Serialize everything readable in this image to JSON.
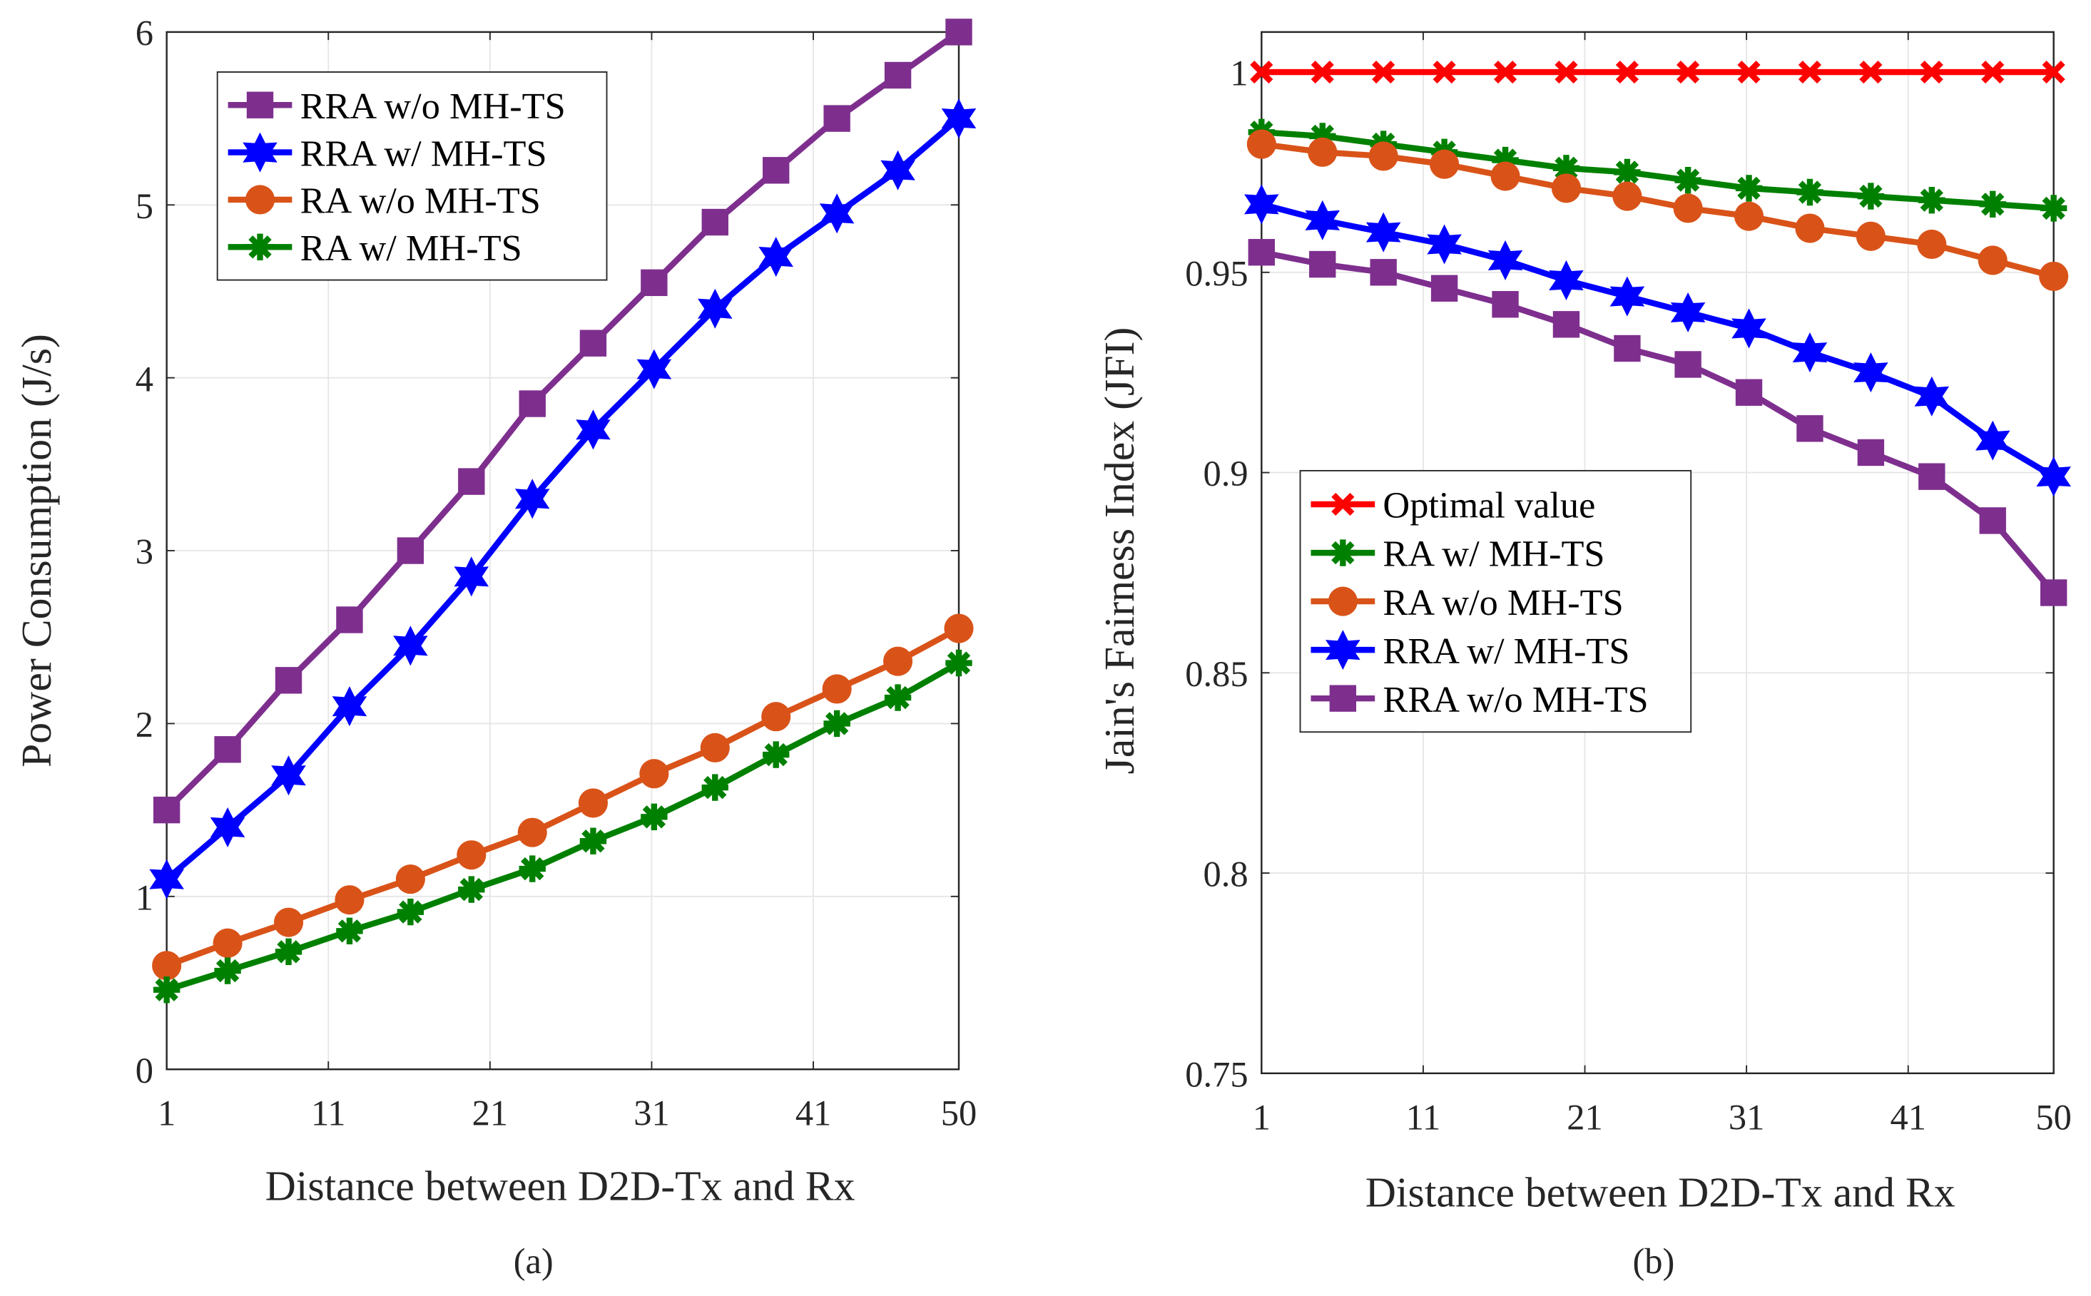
{
  "chart_data": [
    {
      "type": "line",
      "caption": "(a)",
      "xlabel": "Distance between D2D-Tx and Rx",
      "ylabel": "Power Consumption (J/s)",
      "xlim": [
        1,
        50
      ],
      "ylim": [
        0,
        6
      ],
      "xticks": [
        1,
        11,
        21,
        31,
        41,
        50
      ],
      "yticks": [
        0,
        1,
        2,
        3,
        4,
        5,
        6
      ],
      "grid": true,
      "legend_position": "top-left",
      "x": [
        1,
        4.77,
        8.54,
        12.31,
        16.08,
        19.85,
        23.62,
        27.38,
        31.15,
        34.92,
        38.69,
        42.46,
        46.23,
        50
      ],
      "series": [
        {
          "name": "RRA w/o MH-TS",
          "color": "#7e2f8e",
          "marker": "square",
          "values": [
            1.5,
            1.85,
            2.25,
            2.6,
            3.0,
            3.4,
            3.85,
            4.2,
            4.55,
            4.9,
            5.2,
            5.5,
            5.75,
            6.0
          ]
        },
        {
          "name": "RRA w/ MH-TS",
          "color": "#0000ff",
          "marker": "hexagram",
          "values": [
            1.1,
            1.4,
            1.7,
            2.1,
            2.45,
            2.85,
            3.3,
            3.7,
            4.05,
            4.4,
            4.7,
            4.95,
            5.2,
            5.5
          ]
        },
        {
          "name": "RA w/o MH-TS",
          "color": "#d95319",
          "marker": "circle",
          "values": [
            0.6,
            0.73,
            0.85,
            0.98,
            1.1,
            1.24,
            1.37,
            1.54,
            1.71,
            1.86,
            2.04,
            2.2,
            2.36,
            2.55
          ]
        },
        {
          "name": "RA w/ MH-TS",
          "color": "#008000",
          "marker": "asterisk",
          "values": [
            0.46,
            0.57,
            0.68,
            0.8,
            0.91,
            1.04,
            1.16,
            1.32,
            1.46,
            1.63,
            1.82,
            2.0,
            2.15,
            2.35
          ]
        }
      ]
    },
    {
      "type": "line",
      "caption": "(b)",
      "xlabel": "Distance between D2D-Tx and Rx",
      "ylabel": "Jain's Fairness Index (JFI)",
      "xlim": [
        1,
        50
      ],
      "ylim": [
        0.75,
        1.01
      ],
      "xticks": [
        1,
        11,
        21,
        31,
        41,
        50
      ],
      "yticks": [
        0.75,
        0.8,
        0.85,
        0.9,
        0.95,
        1
      ],
      "grid": true,
      "legend_position": "center-left",
      "x": [
        1,
        4.77,
        8.54,
        12.31,
        16.08,
        19.85,
        23.62,
        27.38,
        31.15,
        34.92,
        38.69,
        42.46,
        46.23,
        50
      ],
      "series": [
        {
          "name": "Optimal value",
          "color": "#ff0000",
          "marker": "x",
          "values": [
            1,
            1,
            1,
            1,
            1,
            1,
            1,
            1,
            1,
            1,
            1,
            1,
            1,
            1
          ]
        },
        {
          "name": "RA w/ MH-TS",
          "color": "#008000",
          "marker": "asterisk",
          "values": [
            0.985,
            0.984,
            0.982,
            0.98,
            0.978,
            0.976,
            0.975,
            0.973,
            0.971,
            0.97,
            0.969,
            0.968,
            0.967,
            0.966
          ]
        },
        {
          "name": "RA w/o MH-TS",
          "color": "#d95319",
          "marker": "circle",
          "values": [
            0.982,
            0.98,
            0.979,
            0.977,
            0.974,
            0.971,
            0.969,
            0.966,
            0.964,
            0.961,
            0.959,
            0.957,
            0.953,
            0.949
          ]
        },
        {
          "name": "RRA w/ MH-TS",
          "color": "#0000ff",
          "marker": "hexagram",
          "values": [
            0.967,
            0.963,
            0.96,
            0.957,
            0.953,
            0.948,
            0.944,
            0.94,
            0.936,
            0.93,
            0.925,
            0.919,
            0.908,
            0.899
          ]
        },
        {
          "name": "RRA w/o MH-TS",
          "color": "#7e2f8e",
          "marker": "square",
          "values": [
            0.955,
            0.952,
            0.95,
            0.946,
            0.942,
            0.937,
            0.931,
            0.927,
            0.92,
            0.911,
            0.905,
            0.899,
            0.888,
            0.87
          ]
        }
      ]
    }
  ]
}
